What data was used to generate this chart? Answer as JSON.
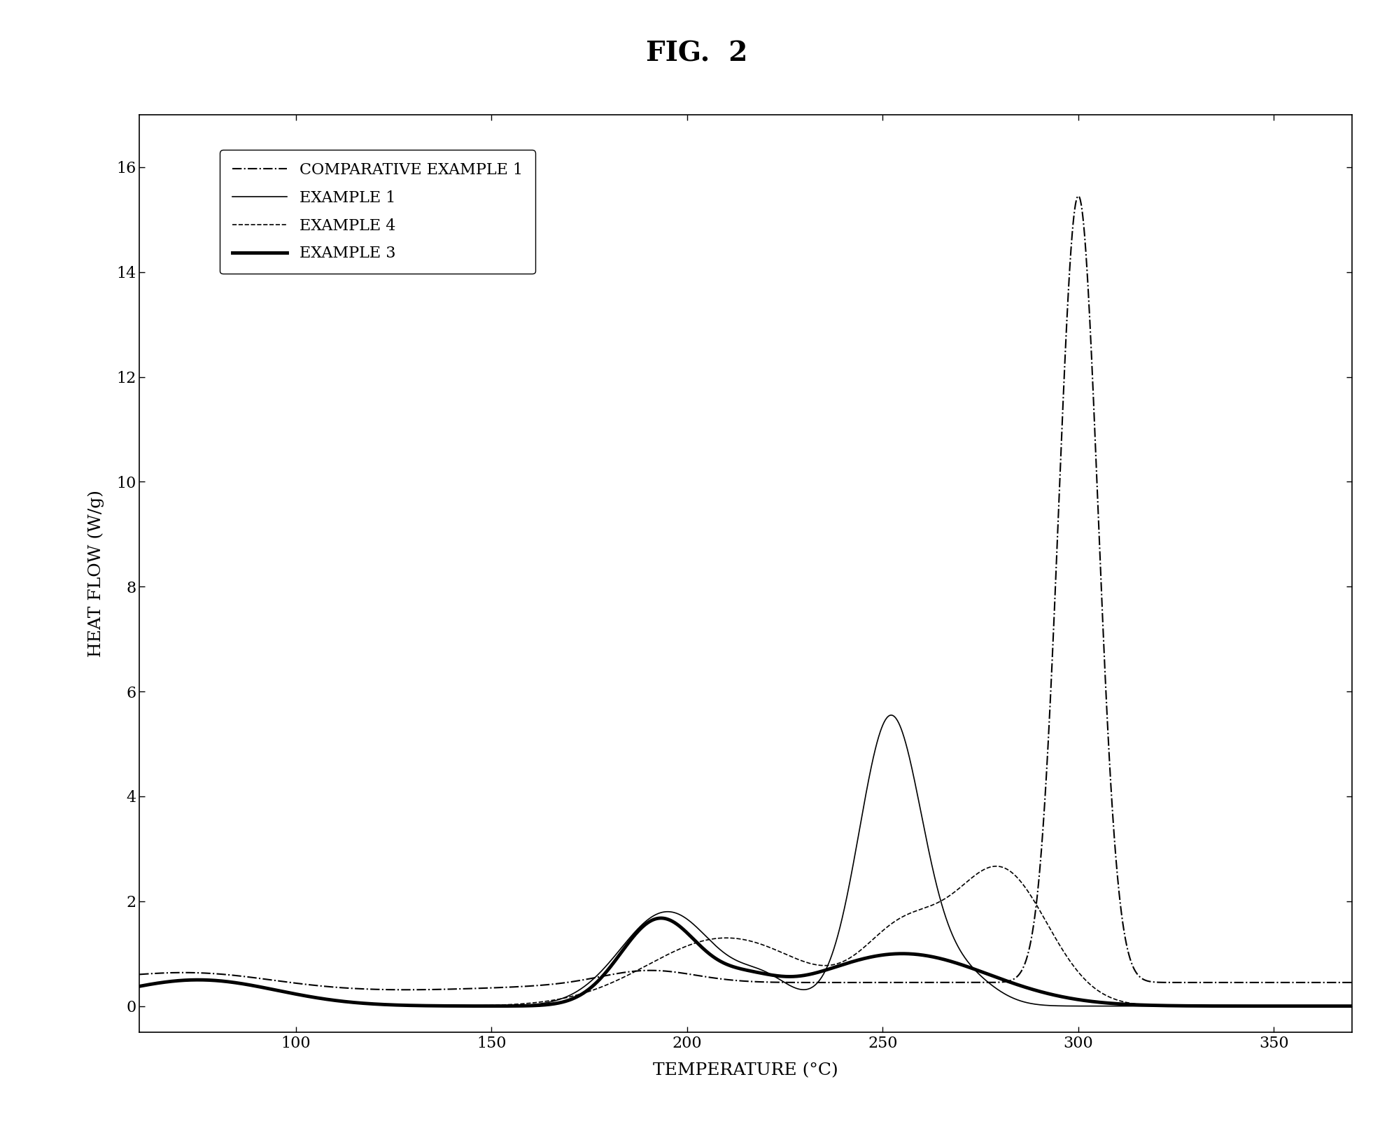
{
  "title": "FIG.  2",
  "xlabel": "TEMPERATURE (°C)",
  "ylabel": "HEAT FLOW (W/g)",
  "xlim": [
    60,
    370
  ],
  "ylim": [
    -0.5,
    17
  ],
  "yticks": [
    0,
    2,
    4,
    6,
    8,
    10,
    12,
    14,
    16
  ],
  "xticks": [
    100,
    150,
    200,
    250,
    300,
    350
  ],
  "background_color": "#ffffff",
  "title_fontsize": 28,
  "axis_fontsize": 18,
  "tick_fontsize": 16,
  "legend_fontsize": 16,
  "legend": [
    {
      "label": "COMPARATIVE EXAMPLE 1",
      "linestyle": "dashdot",
      "linewidth": 1.5,
      "color": "#000000"
    },
    {
      "label": "EXAMPLE 1",
      "linestyle": "solid",
      "linewidth": 1.2,
      "color": "#000000"
    },
    {
      "label": "EXAMPLE 4",
      "linestyle": "dashed",
      "linewidth": 1.2,
      "color": "#000000"
    },
    {
      "label": "EXAMPLE 3",
      "linestyle": "solid",
      "linewidth": 3.5,
      "color": "#000000"
    }
  ]
}
